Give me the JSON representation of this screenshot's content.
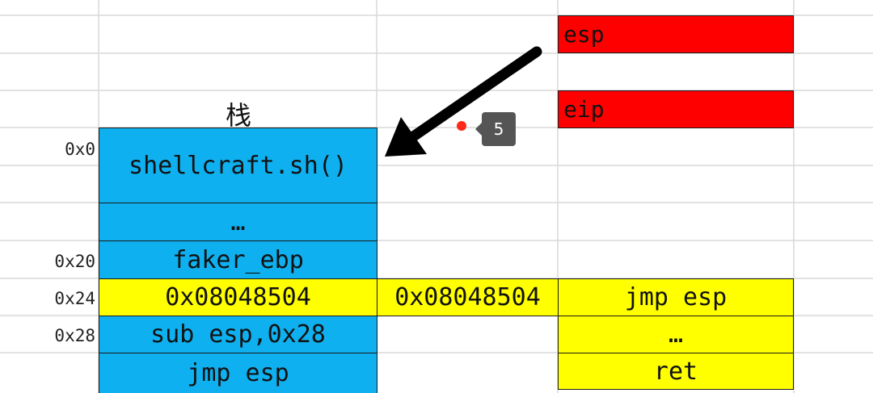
{
  "stack": {
    "title": "栈",
    "cells": [
      {
        "address": "0x0",
        "label": "shellcraft.sh()"
      },
      {
        "address": "",
        "label": "…"
      },
      {
        "address": "0x20",
        "label": "faker_ebp"
      },
      {
        "address": "0x24",
        "label": "0x08048504"
      },
      {
        "address": "0x28",
        "label": "sub esp,0x28"
      },
      {
        "address": "",
        "label": "jmp esp"
      }
    ]
  },
  "middle": {
    "label": "0x08048504"
  },
  "registers": {
    "esp": "esp",
    "eip": "eip"
  },
  "gadget": {
    "items": [
      "jmp esp",
      "…",
      "ret"
    ]
  },
  "annotation": {
    "badge": "5"
  },
  "colors": {
    "stack_fill": "#0fb0ef",
    "highlight_fill": "#ffff00",
    "register_fill": "#ff0000",
    "arrow": "#000000",
    "gridline": "#d9d9d9"
  }
}
